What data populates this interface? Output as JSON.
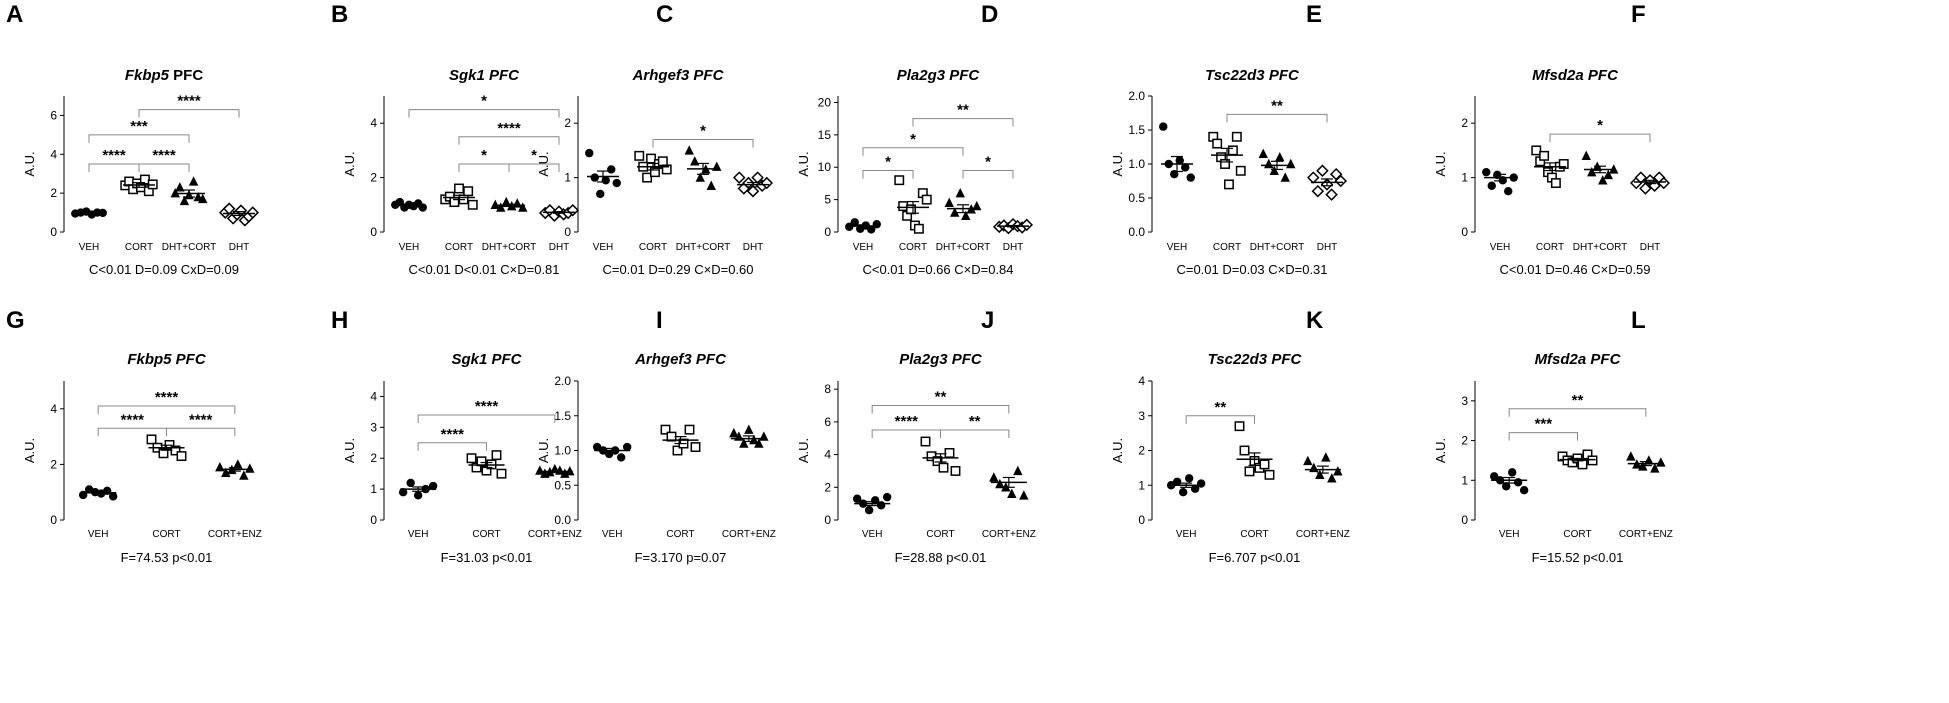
{
  "chart_data": [
    {
      "label": "A",
      "type": "scatter",
      "title_italic": "Fkbp5",
      "title_plain": " PFC",
      "ylabel": "A.U.",
      "ylim": [
        0,
        7
      ],
      "yticks": [
        0,
        2,
        4,
        6
      ],
      "categories": [
        "VEH",
        "CORT",
        "DHT+CORT",
        "DHT"
      ],
      "markers": [
        "circle",
        "square",
        "triangle",
        "diamond"
      ],
      "points": [
        [
          0.95,
          1.0,
          1.05,
          0.9,
          1.0,
          0.98
        ],
        [
          2.4,
          2.6,
          2.2,
          2.5,
          2.3,
          2.7,
          2.1,
          2.45
        ],
        [
          2.0,
          2.3,
          1.6,
          1.9,
          2.6,
          1.8,
          1.7
        ],
        [
          1.0,
          1.2,
          0.7,
          0.9,
          1.1,
          0.6,
          0.8,
          1.0
        ]
      ],
      "means": [
        0.98,
        2.42,
        1.98,
        0.95
      ],
      "sems": [
        0.03,
        0.12,
        0.18,
        0.1
      ],
      "sig": [
        {
          "from": 0,
          "to": 1,
          "label": "****",
          "y": 3.5
        },
        {
          "from": 0,
          "to": 2,
          "label": "***",
          "y": 5.0
        },
        {
          "from": 1,
          "to": 2,
          "label": "****",
          "y": 3.5
        },
        {
          "from": 1,
          "to": 3,
          "label": "****",
          "y": 6.3
        }
      ],
      "stat": "C<0.01 D=0.09 CxD=0.09"
    },
    {
      "label": "B",
      "type": "scatter",
      "title_italic": "Sgk1 PFC",
      "title_plain": "",
      "ylabel": "A.U.",
      "ylim": [
        0,
        5
      ],
      "yticks": [
        0,
        2,
        4
      ],
      "categories": [
        "VEH",
        "CORT",
        "DHT+CORT",
        "DHT"
      ],
      "markers": [
        "circle",
        "square",
        "triangle",
        "diamond"
      ],
      "points": [
        [
          1.0,
          1.1,
          0.9,
          1.0,
          0.95,
          1.05,
          0.9
        ],
        [
          1.2,
          1.3,
          1.1,
          1.6,
          1.2,
          1.5,
          1.0
        ],
        [
          1.0,
          0.9,
          1.1,
          0.95,
          1.05,
          0.9
        ],
        [
          0.7,
          0.8,
          0.6,
          0.75,
          0.65,
          0.7,
          0.8
        ]
      ],
      "means": [
        0.98,
        1.27,
        0.98,
        0.72
      ],
      "sems": [
        0.03,
        0.08,
        0.04,
        0.03
      ],
      "sig": [
        {
          "from": 1,
          "to": 2,
          "label": "*",
          "y": 2.5
        },
        {
          "from": 2,
          "to": 3,
          "label": "*",
          "y": 2.5
        },
        {
          "from": 1,
          "to": 3,
          "label": "****",
          "y": 3.5
        },
        {
          "from": 0,
          "to": 3,
          "label": "*",
          "y": 4.5
        }
      ],
      "stat": "C<0.01 D<0.01 C×D=0.81"
    },
    {
      "label": "C",
      "type": "scatter",
      "title_italic": "Arhgef3 PFC",
      "title_plain": "",
      "ylabel": "A.U.",
      "ylim": [
        0,
        2.5
      ],
      "yticks": [
        0,
        1,
        2
      ],
      "categories": [
        "VEH",
        "CORT",
        "DHT+CORT",
        "DHT"
      ],
      "markers": [
        "circle",
        "square",
        "triangle",
        "diamond"
      ],
      "points": [
        [
          1.45,
          1.0,
          0.7,
          0.95,
          1.15,
          0.9
        ],
        [
          1.4,
          1.2,
          1.0,
          1.35,
          1.1,
          1.25,
          1.3,
          1.15
        ],
        [
          1.5,
          1.3,
          1.0,
          1.15,
          0.85,
          1.2
        ],
        [
          1.0,
          0.8,
          0.9,
          0.75,
          1.0,
          0.85,
          0.9
        ]
      ],
      "means": [
        1.02,
        1.2,
        1.16,
        0.87
      ],
      "sems": [
        0.1,
        0.06,
        0.1,
        0.04
      ],
      "sig": [
        {
          "from": 1,
          "to": 3,
          "label": "*",
          "y": 1.7
        }
      ],
      "stat": "C=0.01 D=0.29 C×D=0.60"
    },
    {
      "label": "D",
      "type": "scatter",
      "title_italic": "Pla2g3 PFC",
      "title_plain": "",
      "ylabel": "A.U.",
      "ylim": [
        0,
        21
      ],
      "yticks": [
        0,
        5,
        10,
        15,
        20
      ],
      "categories": [
        "VEH",
        "CORT",
        "DHT+CORT",
        "DHT"
      ],
      "markers": [
        "circle",
        "square",
        "triangle",
        "diamond"
      ],
      "points": [
        [
          0.8,
          1.5,
          0.5,
          1.0,
          0.4,
          1.2
        ],
        [
          8.0,
          4.0,
          2.5,
          3.5,
          1.0,
          0.5,
          6.0,
          5.0
        ],
        [
          4.5,
          3.0,
          6.0,
          2.5,
          3.5,
          4.0
        ],
        [
          0.8,
          1.0,
          0.6,
          1.2,
          0.9,
          0.7,
          1.1
        ]
      ],
      "means": [
        0.9,
        3.8,
        3.6,
        0.9
      ],
      "sems": [
        0.2,
        0.9,
        0.6,
        0.1
      ],
      "sig": [
        {
          "from": 0,
          "to": 1,
          "label": "*",
          "y": 9.5
        },
        {
          "from": 2,
          "to": 3,
          "label": "*",
          "y": 9.5
        },
        {
          "from": 0,
          "to": 2,
          "label": "*",
          "y": 13.0
        },
        {
          "from": 1,
          "to": 3,
          "label": "**",
          "y": 17.5
        }
      ],
      "stat": "C<0.01 D=0.66 C×D=0.84"
    },
    {
      "label": "E",
      "type": "scatter",
      "title_italic": "Tsc22d3 PFC",
      "title_plain": "",
      "ylabel": "A.U.",
      "ylim": [
        0,
        2.0
      ],
      "yticks": [
        0.0,
        0.5,
        1.0,
        1.5,
        2.0
      ],
      "ydecimals": 1,
      "categories": [
        "VEH",
        "CORT",
        "DHT+CORT",
        "DHT"
      ],
      "markers": [
        "circle",
        "square",
        "triangle",
        "diamond"
      ],
      "points": [
        [
          1.55,
          1.0,
          0.85,
          1.05,
          0.95,
          0.8
        ],
        [
          1.4,
          1.3,
          1.1,
          1.0,
          0.7,
          1.2,
          1.4,
          0.9
        ],
        [
          1.15,
          1.0,
          0.9,
          1.1,
          0.8,
          1.0
        ],
        [
          0.8,
          0.6,
          0.9,
          0.7,
          0.55,
          0.85,
          0.75
        ]
      ],
      "means": [
        1.0,
        1.13,
        0.98,
        0.73
      ],
      "sems": [
        0.11,
        0.1,
        0.06,
        0.05
      ],
      "sig": [
        {
          "from": 1,
          "to": 3,
          "label": "**",
          "y": 1.73
        }
      ],
      "stat": "C=0.01 D=0.03 C×D=0.31"
    },
    {
      "label": "F",
      "type": "scatter",
      "title_italic": "Mfsd2a PFC",
      "title_plain": "",
      "ylabel": "A.U.",
      "ylim": [
        0,
        2.5
      ],
      "yticks": [
        0,
        1,
        2
      ],
      "categories": [
        "VEH",
        "CORT",
        "DHT+CORT",
        "DHT"
      ],
      "markers": [
        "circle",
        "square",
        "triangle",
        "diamond"
      ],
      "points": [
        [
          1.1,
          0.85,
          1.05,
          0.95,
          0.75,
          1.0
        ],
        [
          1.5,
          1.3,
          1.4,
          1.1,
          1.0,
          0.9,
          1.2,
          1.25
        ],
        [
          1.4,
          1.1,
          1.2,
          0.95,
          1.05,
          1.15
        ],
        [
          0.9,
          1.0,
          0.8,
          0.95,
          0.85,
          1.0,
          0.9
        ]
      ],
      "means": [
        1.0,
        1.2,
        1.15,
        0.92
      ],
      "sems": [
        0.06,
        0.07,
        0.06,
        0.03
      ],
      "sig": [
        {
          "from": 1,
          "to": 3,
          "label": "*",
          "y": 1.8
        }
      ],
      "stat": "C<0.01 D=0.46 C×D=0.59"
    },
    {
      "label": "G",
      "type": "scatter",
      "title_italic": "Fkbp5 PFC",
      "title_plain": "",
      "ylabel": "A.U.",
      "ylim": [
        0,
        5
      ],
      "yticks": [
        0,
        2,
        4
      ],
      "categories": [
        "VEH",
        "CORT",
        "CORT+ENZ"
      ],
      "markers": [
        "circle",
        "square",
        "triangle"
      ],
      "points": [
        [
          0.9,
          1.1,
          1.0,
          0.95,
          1.05,
          0.85
        ],
        [
          2.9,
          2.6,
          2.4,
          2.7,
          2.5,
          2.3
        ],
        [
          1.9,
          1.7,
          1.8,
          2.0,
          1.6,
          1.85
        ]
      ],
      "means": [
        0.98,
        2.6,
        1.82
      ],
      "sems": [
        0.04,
        0.09,
        0.06
      ],
      "sig": [
        {
          "from": 0,
          "to": 1,
          "label": "****",
          "y": 3.3
        },
        {
          "from": 1,
          "to": 2,
          "label": "****",
          "y": 3.3
        },
        {
          "from": 0,
          "to": 2,
          "label": "****",
          "y": 4.1
        }
      ],
      "stat": "F=74.53 p<0.01"
    },
    {
      "label": "H",
      "type": "scatter",
      "title_italic": "Sgk1  PFC",
      "title_plain": "",
      "ylabel": "A.U.",
      "ylim": [
        0,
        4.5
      ],
      "yticks": [
        0,
        1,
        2,
        3,
        4
      ],
      "categories": [
        "VEH",
        "CORT",
        "CORT+ENZ"
      ],
      "markers": [
        "circle",
        "square",
        "triangle"
      ],
      "points": [
        [
          0.9,
          1.2,
          0.8,
          1.0,
          1.1
        ],
        [
          2.0,
          1.7,
          1.9,
          1.6,
          1.8,
          2.1,
          1.5
        ],
        [
          1.6,
          1.5,
          1.55,
          1.65,
          1.6,
          1.5,
          1.58
        ]
      ],
      "means": [
        1.0,
        1.78,
        1.57
      ],
      "sems": [
        0.07,
        0.08,
        0.02
      ],
      "sig": [
        {
          "from": 0,
          "to": 1,
          "label": "****",
          "y": 2.5
        },
        {
          "from": 0,
          "to": 2,
          "label": "****",
          "y": 3.4
        }
      ],
      "stat": "F=31.03 p<0.01"
    },
    {
      "label": "I",
      "type": "scatter",
      "title_italic": "Arhgef3  PFC",
      "title_plain": "",
      "ylabel": "A.U.",
      "ylim": [
        0,
        2.0
      ],
      "yticks": [
        0.0,
        0.5,
        1.0,
        1.5,
        2.0
      ],
      "ydecimals": 1,
      "categories": [
        "VEH",
        "CORT",
        "CORT+ENZ"
      ],
      "markers": [
        "circle",
        "square",
        "triangle"
      ],
      "points": [
        [
          1.05,
          1.0,
          0.95,
          1.0,
          0.9,
          1.05
        ],
        [
          1.3,
          1.2,
          1.0,
          1.1,
          1.3,
          1.05
        ],
        [
          1.25,
          1.2,
          1.1,
          1.3,
          1.15,
          1.1,
          1.2
        ]
      ],
      "means": [
        1.0,
        1.15,
        1.17
      ],
      "sems": [
        0.03,
        0.05,
        0.04
      ],
      "sig": [],
      "stat": "F=3.170 p=0.07"
    },
    {
      "label": "J",
      "type": "scatter",
      "title_italic": "Pla2g3 PFC",
      "title_plain": "",
      "ylabel": "A.U.",
      "ylim": [
        0,
        8.5
      ],
      "yticks": [
        0,
        2,
        4,
        6,
        8
      ],
      "categories": [
        "VEH",
        "CORT",
        "CORT+ENZ"
      ],
      "markers": [
        "circle",
        "square",
        "triangle"
      ],
      "points": [
        [
          1.3,
          1.0,
          0.6,
          1.2,
          0.9,
          1.4
        ],
        [
          4.8,
          3.9,
          3.6,
          3.2,
          4.1,
          3.0
        ],
        [
          2.6,
          2.2,
          2.0,
          1.6,
          3.0,
          1.5
        ]
      ],
      "means": [
        1.0,
        3.8,
        2.3
      ],
      "sems": [
        0.12,
        0.25,
        0.3
      ],
      "sig": [
        {
          "from": 0,
          "to": 1,
          "label": "****",
          "y": 5.5
        },
        {
          "from": 1,
          "to": 2,
          "label": "**",
          "y": 5.5
        },
        {
          "from": 0,
          "to": 2,
          "label": "**",
          "y": 7.0
        }
      ],
      "stat": "F=28.88 p<0.01"
    },
    {
      "label": "K",
      "type": "scatter",
      "title_italic": "Tsc22d3 PFC",
      "title_plain": "",
      "ylabel": "A.U.",
      "ylim": [
        0,
        4
      ],
      "yticks": [
        0,
        1,
        2,
        3,
        4
      ],
      "categories": [
        "VEH",
        "CORT",
        "CORT+ENZ"
      ],
      "markers": [
        "circle",
        "square",
        "triangle"
      ],
      "points": [
        [
          1.0,
          1.1,
          0.8,
          1.2,
          0.9,
          1.05
        ],
        [
          2.7,
          2.0,
          1.4,
          1.7,
          1.5,
          1.6,
          1.3
        ],
        [
          1.7,
          1.5,
          1.3,
          1.8,
          1.2,
          1.4
        ]
      ],
      "means": [
        1.0,
        1.75,
        1.45
      ],
      "sems": [
        0.06,
        0.18,
        0.1
      ],
      "sig": [
        {
          "from": 0,
          "to": 1,
          "label": "**",
          "y": 3.0
        }
      ],
      "stat": "F=6.707 p<0.01"
    },
    {
      "label": "L",
      "type": "scatter",
      "title_italic": "Mfsd2a PFC",
      "title_plain": "",
      "ylabel": "A.U.",
      "ylim": [
        0,
        3.5
      ],
      "yticks": [
        0,
        1,
        2,
        3
      ],
      "categories": [
        "VEH",
        "CORT",
        "CORT+ENZ"
      ],
      "markers": [
        "circle",
        "square",
        "triangle"
      ],
      "points": [
        [
          1.1,
          1.0,
          0.85,
          1.2,
          0.95,
          0.75
        ],
        [
          1.6,
          1.5,
          1.45,
          1.55,
          1.4,
          1.65,
          1.5
        ],
        [
          1.6,
          1.4,
          1.35,
          1.5,
          1.3,
          1.45
        ]
      ],
      "means": [
        1.0,
        1.52,
        1.42
      ],
      "sems": [
        0.07,
        0.03,
        0.05
      ],
      "sig": [
        {
          "from": 0,
          "to": 1,
          "label": "***",
          "y": 2.2
        },
        {
          "from": 0,
          "to": 2,
          "label": "**",
          "y": 2.8
        }
      ],
      "stat": "F=15.52 p<0.01"
    }
  ]
}
